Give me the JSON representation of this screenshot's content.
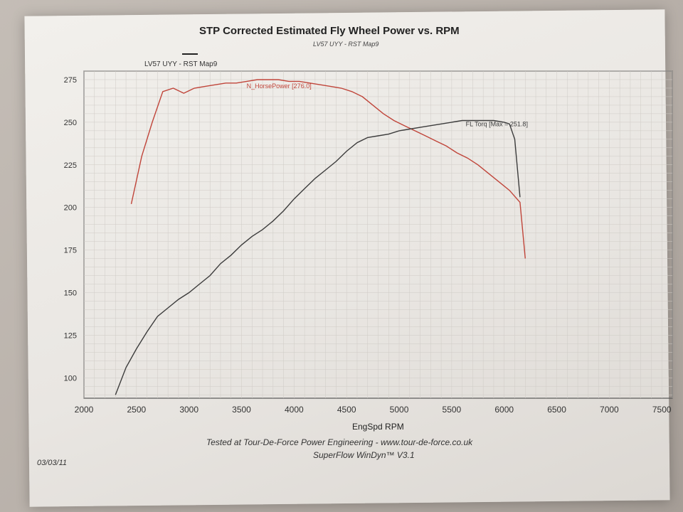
{
  "chart_data": {
    "type": "line",
    "title": "STP Corrected Estimated Fly Wheel Power vs. RPM",
    "subtitle": "LV57 UYY - RST Map9",
    "legend_label": "LV57 UYY - RST Map9",
    "xlabel": "EngSpd RPM",
    "ylabel": "",
    "x_ticks": [
      "2000",
      "2500",
      "3000",
      "3500",
      "4000",
      "4500",
      "5000",
      "5500",
      "6000",
      "6500",
      "7000",
      "7500"
    ],
    "y_ticks": [
      "100",
      "125",
      "150",
      "175",
      "200",
      "225",
      "250",
      "275"
    ],
    "xlim": [
      2000,
      7600
    ],
    "ylim": [
      88,
      280
    ],
    "grid": true,
    "series": [
      {
        "name": "",
        "color": "#c0453a",
        "annotation": "N_HorsePower [276.0]",
        "x": [
          2450,
          2550,
          2650,
          2750,
          2850,
          2950,
          3050,
          3150,
          3250,
          3350,
          3450,
          3550,
          3650,
          3750,
          3850,
          3950,
          4050,
          4150,
          4250,
          4350,
          4450,
          4550,
          4650,
          4750,
          4850,
          4950,
          5050,
          5150,
          5250,
          5350,
          5450,
          5550,
          5650,
          5750,
          5850,
          5950,
          6050,
          6150,
          6200
        ],
        "y": [
          202,
          230,
          250,
          268,
          270,
          267,
          270,
          271,
          272,
          273,
          273,
          274,
          275,
          275,
          275,
          274,
          274,
          273,
          272,
          271,
          270,
          268,
          265,
          260,
          255,
          251,
          248,
          245,
          242,
          239,
          236,
          232,
          229,
          225,
          220,
          215,
          210,
          203,
          170
        ]
      },
      {
        "name": "",
        "color": "#3c3c3c",
        "annotation": "FL Torq [Max = 251.8]",
        "x": [
          2300,
          2400,
          2500,
          2600,
          2700,
          2800,
          2900,
          3000,
          3100,
          3200,
          3300,
          3400,
          3500,
          3600,
          3700,
          3800,
          3900,
          4000,
          4100,
          4200,
          4300,
          4400,
          4500,
          4600,
          4700,
          4800,
          4900,
          5000,
          5100,
          5200,
          5300,
          5400,
          5500,
          5600,
          5700,
          5800,
          5900,
          6000,
          6050,
          6100,
          6150
        ],
        "y": [
          90,
          106,
          117,
          127,
          136,
          141,
          146,
          150,
          155,
          160,
          167,
          172,
          178,
          183,
          187,
          192,
          198,
          205,
          211,
          217,
          222,
          227,
          233,
          238,
          241,
          242,
          243,
          245,
          246,
          247,
          248,
          249,
          250,
          251,
          251,
          251,
          251,
          250,
          249,
          240,
          206
        ]
      }
    ]
  },
  "footer": {
    "line1": "Tested at Tour-De-Force Power Engineering - www.tour-de-force.co.uk",
    "line2": "SuperFlow WinDyn™ V3.1",
    "date": "03/03/11"
  }
}
